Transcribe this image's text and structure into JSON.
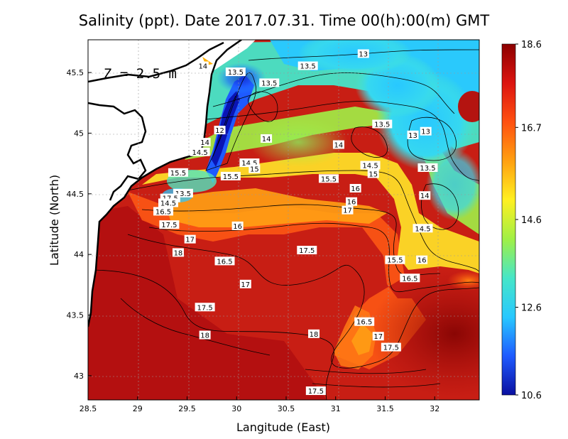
{
  "title": "Salinity (ppt). Date 2017.07.31. Time 00(h):00(m) GMT",
  "depth_label": "Z = 2.5 m",
  "x_axis": {
    "title": "Langitude (East)",
    "ticks": [
      {
        "label": "28.5",
        "value": 28.5
      },
      {
        "label": "29",
        "value": 29.0
      },
      {
        "label": "29.5",
        "value": 29.5
      },
      {
        "label": "30",
        "value": 30.0
      },
      {
        "label": "30.5",
        "value": 30.5
      },
      {
        "label": "31",
        "value": 31.0
      },
      {
        "label": "31.5",
        "value": 31.5
      },
      {
        "label": "32",
        "value": 32.0
      }
    ],
    "range": [
      28.5,
      32.45
    ]
  },
  "y_axis": {
    "title": "Latitude (North)",
    "ticks": [
      {
        "label": "43",
        "value": 43.0
      },
      {
        "label": "43.5",
        "value": 43.5
      },
      {
        "label": "44",
        "value": 44.0
      },
      {
        "label": "44.5",
        "value": 44.5
      },
      {
        "label": "45",
        "value": 45.0
      },
      {
        "label": "45.5",
        "value": 45.5
      }
    ],
    "range": [
      42.8,
      45.77
    ]
  },
  "colorbar": {
    "ticks": [
      {
        "label": "18.6",
        "value": 18.6
      },
      {
        "label": "16.7",
        "value": 16.7
      },
      {
        "label": "14.6",
        "value": 14.6
      },
      {
        "label": "12.6",
        "value": 12.6
      },
      {
        "label": "10.6",
        "value": 10.6
      }
    ],
    "range": [
      10.6,
      18.6
    ],
    "colors": [
      "#0a10a0",
      "#1e5aff",
      "#28c8ff",
      "#46e6c8",
      "#a0f046",
      "#fff020",
      "#ffa010",
      "#ff5010",
      "#dc1410",
      "#8c0000"
    ]
  },
  "contour_labels": [
    {
      "text": "13",
      "lon": 31.28,
      "lat": 45.65
    },
    {
      "text": "13.5",
      "lon": 30.72,
      "lat": 45.55
    },
    {
      "text": "14",
      "lon": 29.66,
      "lat": 45.55
    },
    {
      "text": "13.5",
      "lon": 29.99,
      "lat": 45.5
    },
    {
      "text": "13.5",
      "lon": 30.33,
      "lat": 45.41
    },
    {
      "text": "13.5",
      "lon": 31.47,
      "lat": 45.07
    },
    {
      "text": "13",
      "lon": 31.91,
      "lat": 45.01
    },
    {
      "text": "13",
      "lon": 31.78,
      "lat": 44.98
    },
    {
      "text": "12",
      "lon": 29.83,
      "lat": 45.02
    },
    {
      "text": "14",
      "lon": 29.68,
      "lat": 44.92
    },
    {
      "text": "14",
      "lon": 30.3,
      "lat": 44.95
    },
    {
      "text": "14",
      "lon": 31.03,
      "lat": 44.9
    },
    {
      "text": "14.5",
      "lon": 29.63,
      "lat": 44.84
    },
    {
      "text": "14.5",
      "lon": 30.13,
      "lat": 44.75
    },
    {
      "text": "15",
      "lon": 30.18,
      "lat": 44.7
    },
    {
      "text": "14.5",
      "lon": 31.35,
      "lat": 44.73
    },
    {
      "text": "13.5",
      "lon": 31.93,
      "lat": 44.71
    },
    {
      "text": "15.5",
      "lon": 29.41,
      "lat": 44.67
    },
    {
      "text": "15",
      "lon": 31.38,
      "lat": 44.66
    },
    {
      "text": "15.5",
      "lon": 29.94,
      "lat": 44.64
    },
    {
      "text": "15.5",
      "lon": 30.93,
      "lat": 44.62
    },
    {
      "text": "16",
      "lon": 31.2,
      "lat": 44.54
    },
    {
      "text": "14",
      "lon": 31.9,
      "lat": 44.48
    },
    {
      "text": "13.5",
      "lon": 29.46,
      "lat": 44.5
    },
    {
      "text": "17.5",
      "lon": 29.33,
      "lat": 44.46
    },
    {
      "text": "14.5",
      "lon": 29.31,
      "lat": 44.42
    },
    {
      "text": "16",
      "lon": 31.16,
      "lat": 44.43
    },
    {
      "text": "17",
      "lon": 31.12,
      "lat": 44.36
    },
    {
      "text": "16.5",
      "lon": 29.26,
      "lat": 44.35
    },
    {
      "text": "17.5",
      "lon": 29.32,
      "lat": 44.24
    },
    {
      "text": "16",
      "lon": 30.01,
      "lat": 44.23
    },
    {
      "text": "14.5",
      "lon": 31.88,
      "lat": 44.21
    },
    {
      "text": "17",
      "lon": 29.53,
      "lat": 44.12
    },
    {
      "text": "17.5",
      "lon": 30.71,
      "lat": 44.03
    },
    {
      "text": "18",
      "lon": 29.41,
      "lat": 44.01
    },
    {
      "text": "16.5",
      "lon": 29.88,
      "lat": 43.94
    },
    {
      "text": "15.5",
      "lon": 31.6,
      "lat": 43.95
    },
    {
      "text": "16",
      "lon": 31.87,
      "lat": 43.95
    },
    {
      "text": "16.5",
      "lon": 31.75,
      "lat": 43.8
    },
    {
      "text": "17",
      "lon": 30.09,
      "lat": 43.75
    },
    {
      "text": "17.5",
      "lon": 29.68,
      "lat": 43.56
    },
    {
      "text": "16.5",
      "lon": 31.29,
      "lat": 43.44
    },
    {
      "text": "18",
      "lon": 30.78,
      "lat": 43.34
    },
    {
      "text": "18",
      "lon": 29.68,
      "lat": 43.33
    },
    {
      "text": "17",
      "lon": 31.43,
      "lat": 43.32
    },
    {
      "text": "17.5",
      "lon": 31.56,
      "lat": 43.23
    },
    {
      "text": "17.5",
      "lon": 30.8,
      "lat": 42.87
    }
  ]
}
